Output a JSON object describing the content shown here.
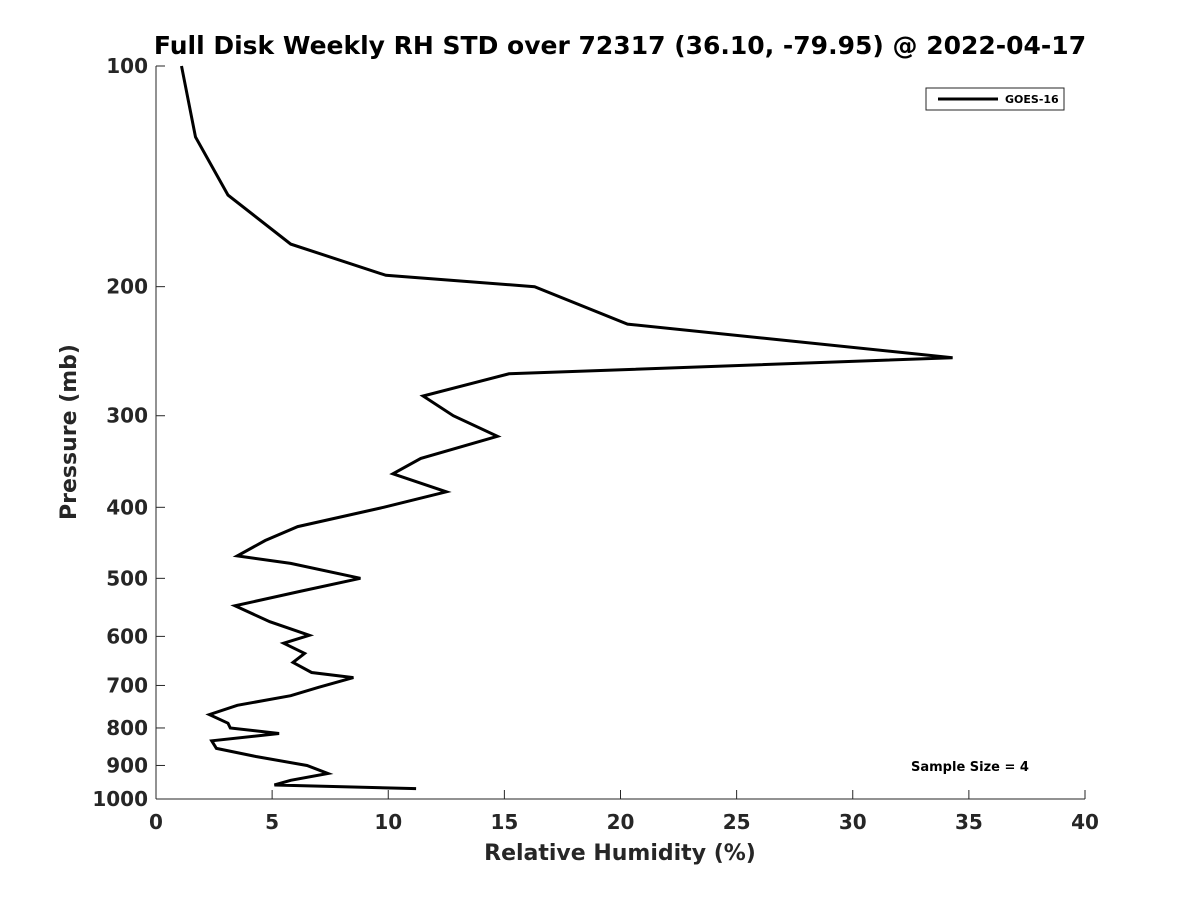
{
  "chart_data": {
    "type": "line",
    "title": "Full Disk Weekly RH STD over 72317 (36.10, -79.95) @ 2022-04-17",
    "xlabel": "Relative Humidity (%)",
    "ylabel": "Pressure (mb)",
    "xlim": [
      0,
      40
    ],
    "ylim": [
      100,
      1000
    ],
    "y_scale": "log",
    "y_reversed": true,
    "x_ticks": [
      0,
      5,
      10,
      15,
      20,
      25,
      30,
      35,
      40
    ],
    "y_ticks": [
      100,
      200,
      300,
      400,
      500,
      600,
      700,
      800,
      900,
      1000
    ],
    "grid": false,
    "legend_position": "top-right",
    "annotation": "Sample Size = 4",
    "series": [
      {
        "name": "GOES-16",
        "color": "#000000",
        "points": [
          [
            1.1,
            100
          ],
          [
            1.7,
            125
          ],
          [
            3.1,
            150
          ],
          [
            5.8,
            175
          ],
          [
            9.9,
            193
          ],
          [
            16.3,
            200
          ],
          [
            20.3,
            225
          ],
          [
            34.3,
            250
          ],
          [
            15.2,
            263
          ],
          [
            11.5,
            282
          ],
          [
            12.8,
            300
          ],
          [
            14.7,
            320
          ],
          [
            11.4,
            343
          ],
          [
            10.2,
            360
          ],
          [
            12.5,
            381
          ],
          [
            9.8,
            400
          ],
          [
            6.1,
            425
          ],
          [
            4.7,
            444
          ],
          [
            3.5,
            466
          ],
          [
            5.8,
            477
          ],
          [
            8.8,
            500
          ],
          [
            6.2,
            521
          ],
          [
            3.4,
            545
          ],
          [
            4.9,
            573
          ],
          [
            6.6,
            598
          ],
          [
            5.5,
            613
          ],
          [
            6.4,
            633
          ],
          [
            5.9,
            651
          ],
          [
            6.7,
            672
          ],
          [
            8.5,
            683
          ],
          [
            7.0,
            704
          ],
          [
            5.8,
            723
          ],
          [
            3.5,
            745
          ],
          [
            2.3,
            767
          ],
          [
            3.1,
            788
          ],
          [
            3.2,
            800
          ],
          [
            5.3,
            814
          ],
          [
            2.4,
            833
          ],
          [
            2.6,
            853
          ],
          [
            4.3,
            875
          ],
          [
            6.5,
            900
          ],
          [
            7.4,
            923
          ],
          [
            5.8,
            943
          ],
          [
            5.1,
            957
          ],
          [
            11.2,
            968
          ]
        ]
      }
    ]
  }
}
